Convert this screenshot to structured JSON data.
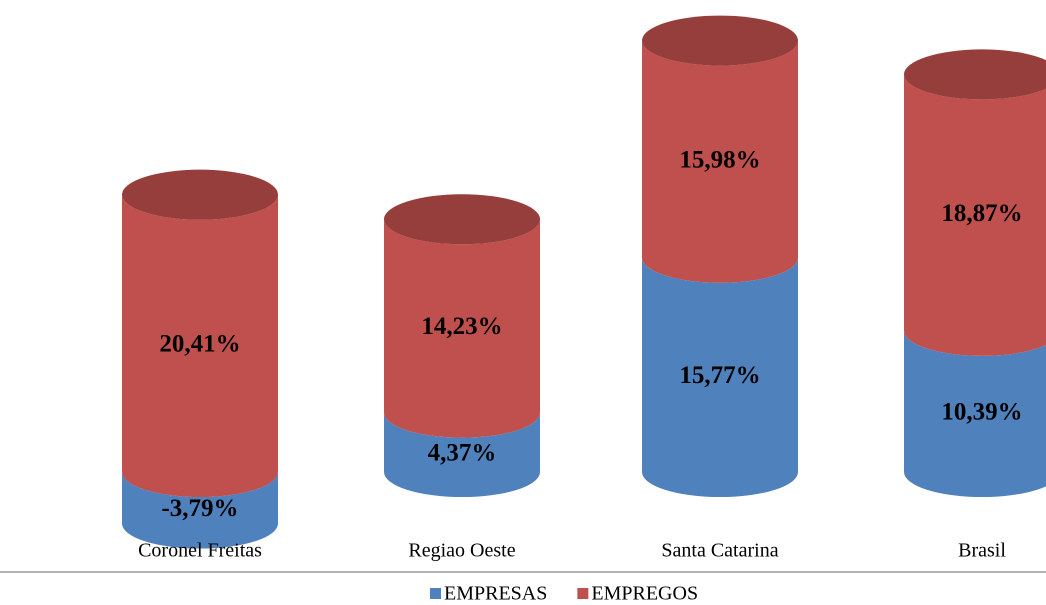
{
  "chart_data": {
    "type": "bar3d_stacked",
    "categories": [
      "Coronel Freitas",
      "Regiao Oeste",
      "Santa Catarina",
      "Brasil"
    ],
    "series": [
      {
        "name": "EMPRESAS",
        "color": "#4f81bd",
        "values": [
          -3.79,
          4.37,
          15.77,
          10.39
        ],
        "value_labels": [
          "-3,79%",
          "4,37%",
          "15,77%",
          "10,39%"
        ]
      },
      {
        "name": "EMPREGOS",
        "color": "#c0504d",
        "values": [
          20.41,
          14.23,
          15.98,
          18.87
        ],
        "value_labels": [
          "20,41%",
          "14,23%",
          "15,98%",
          "18,87%"
        ]
      }
    ],
    "ylim": [
      -5,
      34
    ],
    "legend": "bottom"
  }
}
